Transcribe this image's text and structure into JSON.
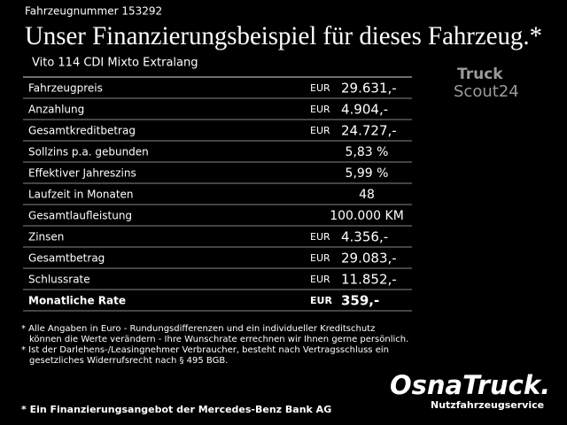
{
  "header": {
    "vehicle_number": "Fahrzeugnummer 153292",
    "title": "Unser Finanzierungsbeispiel für dieses Fahrzeug.*",
    "model": "Vito 114 CDI Mixto Extralang"
  },
  "marketplace_logo": {
    "top": "Truck",
    "bottom": "Scout24"
  },
  "table": {
    "rows": [
      {
        "label": "Fahrzeugpreis",
        "currency": "EUR",
        "value": "29.631,-"
      },
      {
        "label": "Anzahlung",
        "currency": "EUR",
        "value": "4.904,-"
      },
      {
        "label": "Gesamtkreditbetrag",
        "currency": "EUR",
        "value": "24.727,-"
      },
      {
        "label": "Sollzins p.a. gebunden",
        "value": "5,83 %"
      },
      {
        "label": "Effektiver Jahreszins",
        "value": "5,99 %"
      },
      {
        "label": "Laufzeit in Monaten",
        "value": "48"
      },
      {
        "label": "Gesamtlaufleistung",
        "value": "100.000 KM"
      },
      {
        "label": "Zinsen",
        "currency": "EUR",
        "value": "4.356,-"
      },
      {
        "label": "Gesamtbetrag",
        "currency": "EUR",
        "value": "29.083,-"
      },
      {
        "label": "Schlussrate",
        "currency": "EUR",
        "value": "11.852,-"
      },
      {
        "label": "Monatliche Rate",
        "currency": "EUR",
        "value": "359,-"
      }
    ]
  },
  "footnotes": [
    [
      "* Alle Angaben in Euro - Rundungsdifferenzen und ein individueller Kreditschutz",
      "können die Werte verändern - Ihre Wunschrate errechnen wir Ihnen gerne persönlich."
    ],
    [
      "* Ist der Darlehens-/Leasingnehmer Verbraucher, besteht nach Vertragsschluss ein",
      "gesetzliches Widerrufsrecht nach § 495 BGB."
    ]
  ],
  "dealer_logo": {
    "name": "OsnaTruck.",
    "tagline": "Nutzfahrzeugservice"
  },
  "bottom_note": "* Ein Finanzierungsangebot der Mercedes-Benz Bank AG"
}
